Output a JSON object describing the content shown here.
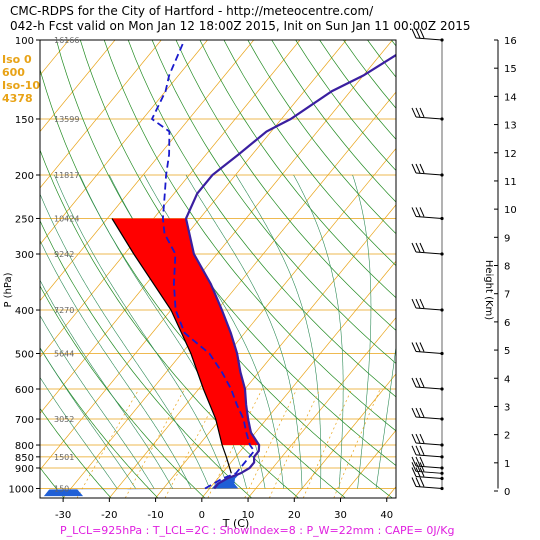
{
  "header": {
    "title_line1": "CMC-RDPS for the City of Hartford - http://meteocentre.com/",
    "title_line2": "042-h Fcst valid on Mon Jan 12 18:00Z 2015, Init on Sun Jan 11 00:00Z 2015"
  },
  "freezing_levels": {
    "iso0_label": "Iso 0",
    "iso0_value": "600",
    "iso10_label": "Iso-10",
    "iso10_value": "4378"
  },
  "footer": {
    "text": "P_LCL=925hPa : T_LCL=2C : ShowIndex=8 : P_W=22mm : CAPE= 0J/Kg"
  },
  "colors": {
    "temperature": "#3a1fa0",
    "dewpoint": "#1a1acc",
    "cape_fill": "#ff0000",
    "cin_fill": "#1f5fd6",
    "isotherms_labels": "#e8a317",
    "dry_adiabats": "#228b22",
    "isobars": "#e8a317"
  },
  "chart_data": {
    "type": "line",
    "xlabel": "T (C)",
    "ylabel": "P (hPa)",
    "y2label": "Height (Km)",
    "xlim": [
      -35,
      42
    ],
    "ylim": [
      1050,
      100
    ],
    "y_scale": "log",
    "x_ticks": [
      "-30",
      "-20",
      "-10",
      "0",
      "10",
      "20",
      "30",
      "40"
    ],
    "x_tick_values": [
      -30,
      -20,
      -10,
      0,
      10,
      20,
      30,
      40
    ],
    "pressure_ticks": [
      100,
      150,
      200,
      250,
      300,
      400,
      500,
      600,
      700,
      800,
      850,
      900,
      1000
    ],
    "height_ticks": [
      "0",
      "1",
      "2",
      "3",
      "4",
      "5",
      "6",
      "7",
      "8",
      "9",
      "10",
      "11",
      "12",
      "13",
      "14",
      "15",
      "16"
    ],
    "geopotential_heights": [
      {
        "p": 100,
        "h": "16166"
      },
      {
        "p": 150,
        "h": "13599"
      },
      {
        "p": 200,
        "h": "11817"
      },
      {
        "p": 250,
        "h": "10424"
      },
      {
        "p": 300,
        "h": "9242"
      },
      {
        "p": 400,
        "h": "7270"
      },
      {
        "p": 500,
        "h": "5644"
      },
      {
        "p": 700,
        "h": "3052"
      },
      {
        "p": 850,
        "h": "1501"
      },
      {
        "p": 1000,
        "h": "150"
      }
    ],
    "temperature": {
      "pressure": [
        1000,
        975,
        950,
        925,
        900,
        875,
        850,
        825,
        800,
        750,
        700,
        650,
        600,
        550,
        500,
        450,
        400,
        350,
        300,
        250,
        220,
        200,
        180,
        160,
        150,
        130,
        120,
        100
      ],
      "values": [
        1,
        1,
        2,
        4,
        5,
        5,
        4,
        4,
        3,
        -1,
        -4,
        -7,
        -10,
        -14,
        -18,
        -23,
        -29,
        -36,
        -45,
        -53,
        -55,
        -55,
        -53,
        -51,
        -48,
        -44,
        -40,
        -34
      ]
    },
    "dewpoint": {
      "pressure": [
        1000,
        975,
        950,
        925,
        900,
        875,
        850,
        825,
        800,
        750,
        700,
        650,
        600,
        550,
        500,
        450,
        400,
        350,
        300,
        270,
        250,
        220,
        200,
        180,
        160,
        150,
        130,
        120,
        100
      ],
      "values": [
        -1,
        0,
        1,
        3,
        3,
        3,
        3,
        3,
        1,
        -2,
        -5,
        -9,
        -13,
        -18,
        -24,
        -33,
        -39,
        -44,
        -49,
        -55,
        -58,
        -62,
        -65,
        -68,
        -72,
        -78,
        -80,
        -82,
        -85
      ]
    },
    "parcel": {
      "pressure": [
        925,
        850,
        800,
        700,
        600,
        500,
        400,
        300,
        250
      ],
      "values": [
        2,
        -2,
        -5,
        -11,
        -19,
        -28,
        -40,
        -58,
        -69
      ]
    },
    "wind_levels_hpa": [
      100,
      150,
      200,
      250,
      300,
      400,
      500,
      600,
      700,
      800,
      850,
      900,
      925,
      950,
      1000
    ]
  }
}
